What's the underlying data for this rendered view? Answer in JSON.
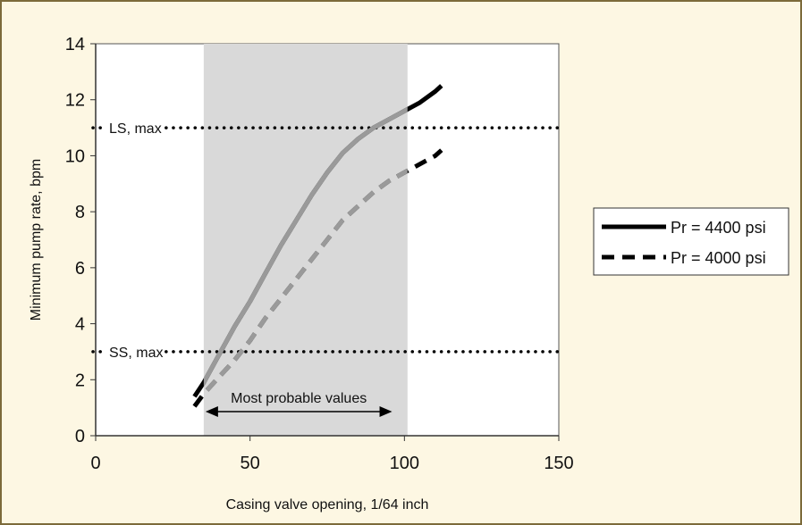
{
  "chart_data": {
    "type": "line",
    "title": "",
    "xlabel": "Casing valve opening, 1/64 inch",
    "ylabel": "Minimum pump rate, bpm",
    "xlim": [
      0,
      150
    ],
    "ylim": [
      0,
      14
    ],
    "xticks": [
      0,
      50,
      100,
      150
    ],
    "yticks": [
      0,
      2,
      4,
      6,
      8,
      10,
      12,
      14
    ],
    "grid": false,
    "legend_position": "right",
    "shaded_region": {
      "x": [
        35,
        101
      ],
      "label": "Most probable values",
      "color": "#d9d9d9"
    },
    "reference_lines": [
      {
        "label": "LS, max",
        "y": 11
      },
      {
        "label": "SS, max",
        "y": 3
      }
    ],
    "series": [
      {
        "name": "Pr = 4400 psi",
        "style": "solid",
        "color": "#000000",
        "x": [
          32,
          35,
          40,
          45,
          50,
          55,
          60,
          65,
          70,
          75,
          80,
          85,
          90,
          95,
          100,
          105,
          110,
          112
        ],
        "y": [
          1.4,
          1.9,
          2.9,
          3.9,
          4.8,
          5.8,
          6.8,
          7.7,
          8.6,
          9.4,
          10.1,
          10.6,
          11.0,
          11.3,
          11.6,
          11.9,
          12.3,
          12.5
        ]
      },
      {
        "name": "Pr = 4000 psi",
        "style": "dashed",
        "color": "#000000",
        "x": [
          32,
          35,
          40,
          45,
          50,
          55,
          60,
          65,
          70,
          75,
          80,
          85,
          90,
          95,
          100,
          105,
          110,
          112
        ],
        "y": [
          1.05,
          1.5,
          2.1,
          2.7,
          3.4,
          4.2,
          4.9,
          5.6,
          6.3,
          7.0,
          7.7,
          8.2,
          8.7,
          9.1,
          9.4,
          9.7,
          10.0,
          10.2
        ]
      }
    ]
  }
}
